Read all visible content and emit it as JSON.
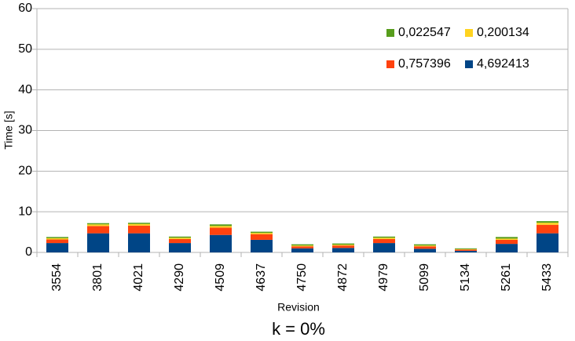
{
  "chart_data": {
    "type": "stacked_bar",
    "title": "k = 0%",
    "x_label": "Revision",
    "y_label": "Time [s]",
    "categories": [
      "3554",
      "3801",
      "4021",
      "4290",
      "4509",
      "4637",
      "4750",
      "4872",
      "4979",
      "5099",
      "5134",
      "5261",
      "5433"
    ],
    "series": [
      {
        "name": "0,022547",
        "color": "#579d1c",
        "values": [
          0.3,
          0.3,
          0.3,
          0.3,
          0.4,
          0.3,
          0.3,
          0.3,
          0.3,
          0.3,
          0.2,
          0.4,
          0.4
        ]
      },
      {
        "name": "0,200134",
        "color": "#ffd320",
        "values": [
          0.3,
          0.4,
          0.4,
          0.3,
          0.4,
          0.3,
          0.2,
          0.2,
          0.3,
          0.2,
          0.1,
          0.3,
          0.5
        ]
      },
      {
        "name": "0,757396",
        "color": "#ff420e",
        "values": [
          0.9,
          1.8,
          1.9,
          1.0,
          1.8,
          1.4,
          0.5,
          0.6,
          1.0,
          0.6,
          0.3,
          1.0,
          2.1
        ]
      },
      {
        "name": "4,692413",
        "color": "#004586",
        "values": [
          2.3,
          4.7,
          4.7,
          2.3,
          4.3,
          3.1,
          1.0,
          1.1,
          2.3,
          0.9,
          0.4,
          2.1,
          4.7
        ]
      }
    ],
    "ylim": [
      0,
      60
    ],
    "yticks": [
      0,
      10,
      20,
      30,
      40,
      50,
      60
    ],
    "grid": true,
    "legend": "top-right"
  }
}
